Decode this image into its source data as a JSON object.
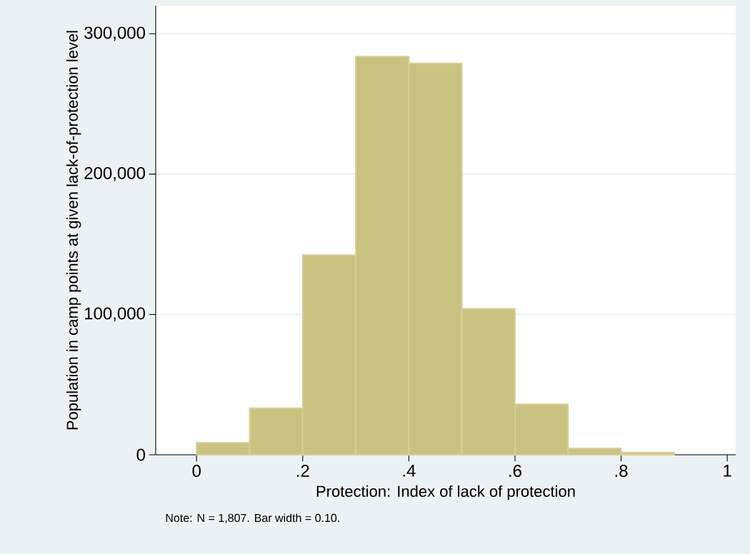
{
  "chart_data": {
    "type": "histogram",
    "xlabel": "Protection: Index of lack of protection",
    "ylabel": "Population in camp points at given lack-of-protection level",
    "annotations": [
      "Note: N = 1,807. Bar width = 0.10."
    ],
    "bins": [
      0,
      0.1,
      0.2,
      0.3,
      0.4,
      0.5,
      0.6,
      0.7,
      0.8,
      0.9
    ],
    "values": [
      8700,
      33200,
      142300,
      283700,
      278900,
      104100,
      36000,
      4600,
      1700
    ],
    "color": "#cac282",
    "xlim": [
      -0.077,
      1.016
    ],
    "ylim": [
      0,
      320000
    ],
    "xticks": [
      0,
      {
        "value": 0.2,
        "label": ".2"
      },
      {
        "value": 0.4,
        "label": ".4"
      },
      {
        "value": 0.6,
        "label": ".6"
      },
      {
        "value": 0.8,
        "label": ".8"
      },
      1
    ],
    "yticks": [
      0,
      {
        "value": 100000,
        "label": "100,000"
      },
      {
        "value": 200000,
        "label": "200,000"
      },
      {
        "value": 300000,
        "label": "300,000"
      }
    ],
    "grid": "y"
  }
}
